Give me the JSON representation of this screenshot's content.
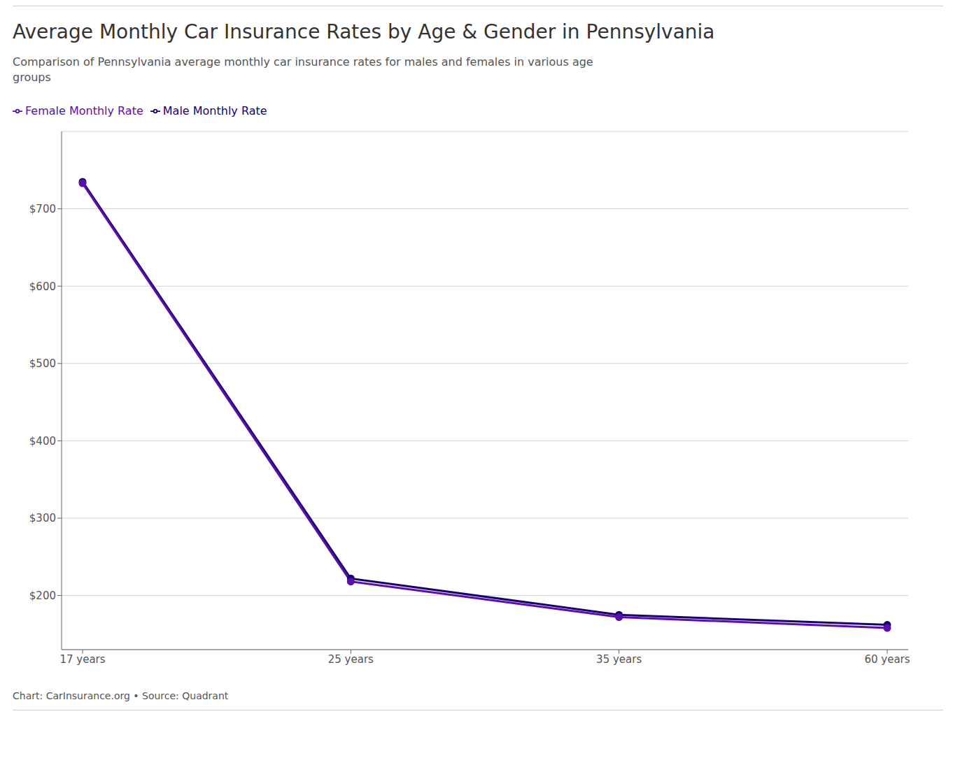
{
  "chart_data": {
    "type": "line",
    "title": "Average Monthly Car Insurance Rates by Age & Gender in Pennsylvania",
    "subtitle": "Comparison of Pennsylvania average monthly car insurance rates for males and females in various age\ngroups",
    "footer": "Chart: CarInsurance.org • Source: Quadrant",
    "categories": [
      "17 years",
      "25 years",
      "35 years",
      "60 years"
    ],
    "series": [
      {
        "name": "Male Monthly Rate",
        "color": "#1a006e",
        "values": [
          735,
          222,
          175,
          162
        ]
      },
      {
        "name": "Female Monthly Rate",
        "color": "#5b0fa8",
        "values": [
          733,
          218,
          172,
          158
        ]
      }
    ],
    "ylim": [
      130,
      800
    ],
    "yticks": [
      {
        "value": 200,
        "label": "$200"
      },
      {
        "value": 300,
        "label": "$300"
      },
      {
        "value": 400,
        "label": "$400"
      },
      {
        "value": 500,
        "label": "$500"
      },
      {
        "value": 600,
        "label": "$600"
      },
      {
        "value": 700,
        "label": "$700"
      }
    ],
    "grid": true,
    "legend": "top",
    "marker": "circle"
  }
}
